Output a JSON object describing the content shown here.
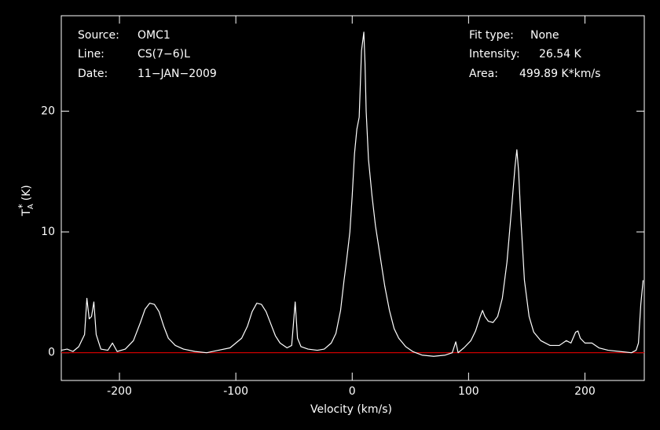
{
  "chart_data": {
    "type": "line",
    "x_label": "Velocity (km/s)",
    "y_label": {
      "base": "T",
      "sub": "A",
      "sup": "*",
      "unit": "(K)"
    },
    "annotations_left": [
      {
        "label": "Source:",
        "text": "OMC1"
      },
      {
        "label": "Line:",
        "text": "CS(7−6)L"
      },
      {
        "label": "Date:",
        "text": "11−JAN−2009"
      }
    ],
    "annotations_right": [
      {
        "label": "Fit type:",
        "text": "None"
      },
      {
        "label": "Intensity:",
        "text": "26.54 K"
      },
      {
        "label": "Area:",
        "text": "499.89 K*km/s"
      }
    ],
    "color": "#ffffff",
    "baseline": {
      "value": 0,
      "color": "#cc0000"
    },
    "xlim": [
      -250,
      251
    ],
    "ylim": [
      -2.3,
      27.9
    ],
    "xticks": [
      -200,
      -100,
      0,
      100,
      200
    ],
    "yticks": [
      0,
      10,
      20
    ],
    "x": [
      -250,
      -245,
      -240,
      -235,
      -230,
      -228,
      -226,
      -224,
      -222,
      -220,
      -216,
      -210,
      -206,
      -202,
      -195,
      -188,
      -182,
      -178,
      -174,
      -170,
      -166,
      -162,
      -158,
      -152,
      -145,
      -135,
      -125,
      -115,
      -105,
      -100,
      -95,
      -90,
      -86,
      -82,
      -78,
      -74,
      -70,
      -66,
      -62,
      -56,
      -52,
      -49,
      -47,
      -44,
      -38,
      -30,
      -24,
      -18,
      -14,
      -10,
      -7,
      -5,
      -2,
      0,
      2,
      4,
      6,
      8,
      10,
      11,
      12,
      14,
      17,
      20,
      24,
      28,
      32,
      36,
      40,
      46,
      52,
      60,
      70,
      80,
      86,
      89,
      91,
      96,
      102,
      106,
      110,
      112,
      114,
      117,
      121,
      125,
      129,
      133,
      137,
      140,
      141.5,
      143,
      145,
      148,
      152,
      156,
      162,
      170,
      178,
      184,
      188,
      192,
      194,
      196,
      200,
      206,
      212,
      220,
      230,
      240,
      244,
      246,
      248,
      250
    ],
    "values": [
      0.2,
      0.3,
      0.1,
      0.5,
      1.5,
      4.5,
      2.8,
      3.0,
      4.2,
      1.5,
      0.3,
      0.2,
      0.8,
      0.1,
      0.3,
      1.0,
      2.5,
      3.6,
      4.1,
      4.0,
      3.4,
      2.2,
      1.2,
      0.6,
      0.3,
      0.1,
      0,
      0.2,
      0.4,
      0.8,
      1.2,
      2.2,
      3.4,
      4.1,
      4.0,
      3.4,
      2.4,
      1.4,
      0.8,
      0.4,
      0.6,
      4.2,
      1.2,
      0.5,
      0.3,
      0.2,
      0.3,
      0.8,
      1.6,
      3.5,
      6,
      7.5,
      10,
      13,
      16.5,
      18.5,
      19.5,
      25,
      26.54,
      24,
      20,
      16,
      13,
      10.5,
      8,
      5.5,
      3.5,
      2,
      1.2,
      0.5,
      0.1,
      -0.2,
      -0.3,
      -0.2,
      0,
      0.9,
      0,
      0.4,
      1.0,
      1.8,
      3.0,
      3.5,
      3.0,
      2.6,
      2.5,
      3.0,
      4.5,
      7.5,
      12,
      15.5,
      16.8,
      15,
      11,
      6,
      3,
      1.7,
      1.0,
      0.6,
      0.6,
      1.0,
      0.8,
      1.7,
      1.8,
      1.2,
      0.8,
      0.8,
      0.4,
      0.2,
      0.1,
      0.0,
      0.2,
      0.8,
      4,
      6
    ]
  }
}
